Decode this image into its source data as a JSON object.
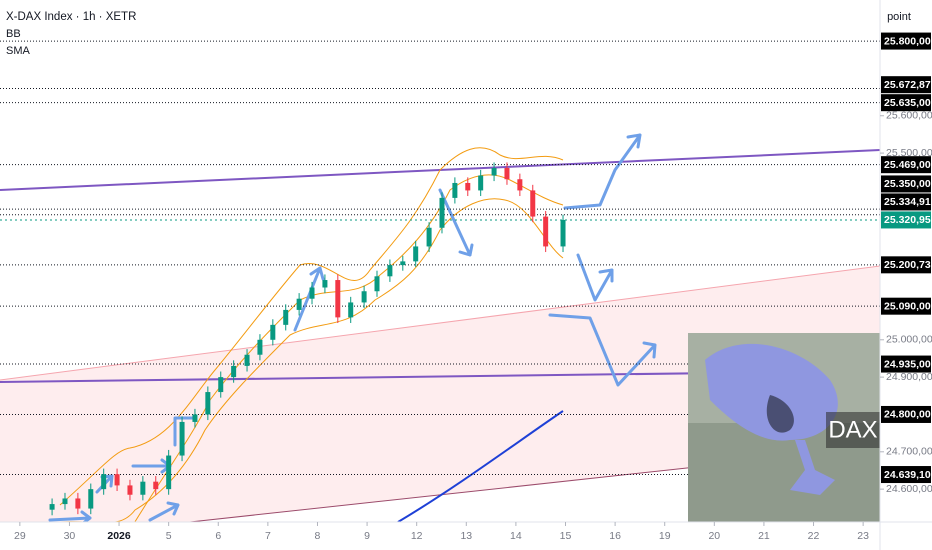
{
  "chart_data": {
    "type": "candlestick",
    "title": "X-DAX Index · 1h · XETR",
    "indicators": [
      "BB",
      "SMA"
    ],
    "y_axis_label": "point",
    "inset_label": "DAX",
    "up_color": "#089981",
    "down_color": "#f23645",
    "x": [
      0.65,
      0.91,
      1.17,
      1.43,
      1.69,
      1.96,
      2.22,
      2.48,
      2.74,
      3.0,
      3.27,
      3.53,
      3.79,
      4.05,
      4.31,
      4.58,
      4.84,
      5.1,
      5.36,
      5.63,
      5.89,
      6.15,
      6.41,
      6.67,
      6.94,
      7.2,
      7.46,
      7.72,
      7.98,
      8.25,
      8.51,
      8.77,
      9.03,
      9.29,
      9.56,
      9.82,
      10.08,
      10.34,
      10.6,
      10.95
    ],
    "open": [
      24545,
      24560,
      24575,
      24548,
      24600,
      24640,
      24610,
      24585,
      24620,
      24600,
      24690,
      24780,
      24800,
      24860,
      24900,
      24930,
      24960,
      25000,
      25040,
      25080,
      25110,
      25140,
      25160,
      25060,
      25100,
      25130,
      25170,
      25200,
      25210,
      25250,
      25300,
      25380,
      25420,
      25400,
      25440,
      25460,
      25430,
      25400,
      25330,
      25250
    ],
    "high": [
      24575,
      24590,
      24590,
      24615,
      24655,
      24655,
      24625,
      24635,
      24635,
      24705,
      24795,
      24815,
      24875,
      24915,
      24945,
      24975,
      25015,
      25055,
      25095,
      25125,
      25155,
      25175,
      25175,
      25115,
      25145,
      25185,
      25215,
      25225,
      25265,
      25315,
      25395,
      25435,
      25435,
      25455,
      25475,
      25475,
      25445,
      25415,
      25345,
      25335
    ],
    "low": [
      24530,
      24545,
      24533,
      24533,
      24585,
      24595,
      24570,
      24570,
      24585,
      24585,
      24675,
      24765,
      24785,
      24845,
      24885,
      24915,
      24945,
      24985,
      25025,
      25065,
      25095,
      25125,
      25045,
      25045,
      25085,
      25115,
      25155,
      25185,
      25195,
      25235,
      25285,
      25365,
      25385,
      25385,
      25425,
      25415,
      25385,
      25315,
      25235,
      25235
    ],
    "close": [
      24560,
      24575,
      24548,
      24600,
      24640,
      24610,
      24585,
      24620,
      24600,
      24690,
      24780,
      24800,
      24860,
      24900,
      24930,
      24960,
      25000,
      25040,
      25080,
      25110,
      25140,
      25160,
      25060,
      25100,
      25130,
      25170,
      25200,
      25210,
      25250,
      25300,
      25380,
      25420,
      25400,
      25440,
      25460,
      25430,
      25400,
      25330,
      25250,
      25320.95
    ],
    "xlim": [
      -0.4,
      17.34
    ],
    "xticks": [
      {
        "value": 0,
        "label": "29"
      },
      {
        "value": 1,
        "label": "30"
      },
      {
        "value": 2,
        "label": "2026"
      },
      {
        "value": 3,
        "label": "5"
      },
      {
        "value": 4,
        "label": "6"
      },
      {
        "value": 5,
        "label": "7"
      },
      {
        "value": 6,
        "label": "8"
      },
      {
        "value": 7,
        "label": "9"
      },
      {
        "value": 8,
        "label": "12"
      },
      {
        "value": 9,
        "label": "13"
      },
      {
        "value": 10,
        "label": "14"
      },
      {
        "value": 11,
        "label": "15"
      },
      {
        "value": 12,
        "label": "16"
      },
      {
        "value": 13,
        "label": "19"
      },
      {
        "value": 14,
        "label": "20"
      },
      {
        "value": 15,
        "label": "21"
      },
      {
        "value": 16,
        "label": "22"
      },
      {
        "value": 17,
        "label": "23"
      }
    ],
    "ylim": [
      24512,
      25910
    ],
    "yticks": [
      {
        "value": 25600,
        "label": "25.600,00"
      },
      {
        "value": 25500,
        "label": "25.500,00"
      },
      {
        "value": 25000,
        "label": "25.000,00"
      },
      {
        "value": 24900,
        "label": "24.900,00"
      },
      {
        "value": 24700,
        "label": "24.700,00"
      },
      {
        "value": 24600,
        "label": "24.600,00"
      }
    ],
    "levels": [
      {
        "value": 25800,
        "label": "25.800,00"
      },
      {
        "value": 25672.87,
        "label": "25.672,87"
      },
      {
        "value": 25635,
        "label": "25.635,00"
      },
      {
        "value": 25469,
        "label": "25.469,00"
      },
      {
        "value": 25350,
        "label": "25.350,00"
      },
      {
        "value": 25334.91,
        "label": "25.334,91"
      },
      {
        "value": 25200.73,
        "label": "25.200,73"
      },
      {
        "value": 25090,
        "label": "25.090,00"
      },
      {
        "value": 24935,
        "label": "24.935,00"
      },
      {
        "value": 24800,
        "label": "24.800,00"
      },
      {
        "value": 24639.1,
        "label": "24.639,10"
      }
    ],
    "last_price": {
      "value": 25320.95,
      "label": "25.320,95"
    }
  }
}
